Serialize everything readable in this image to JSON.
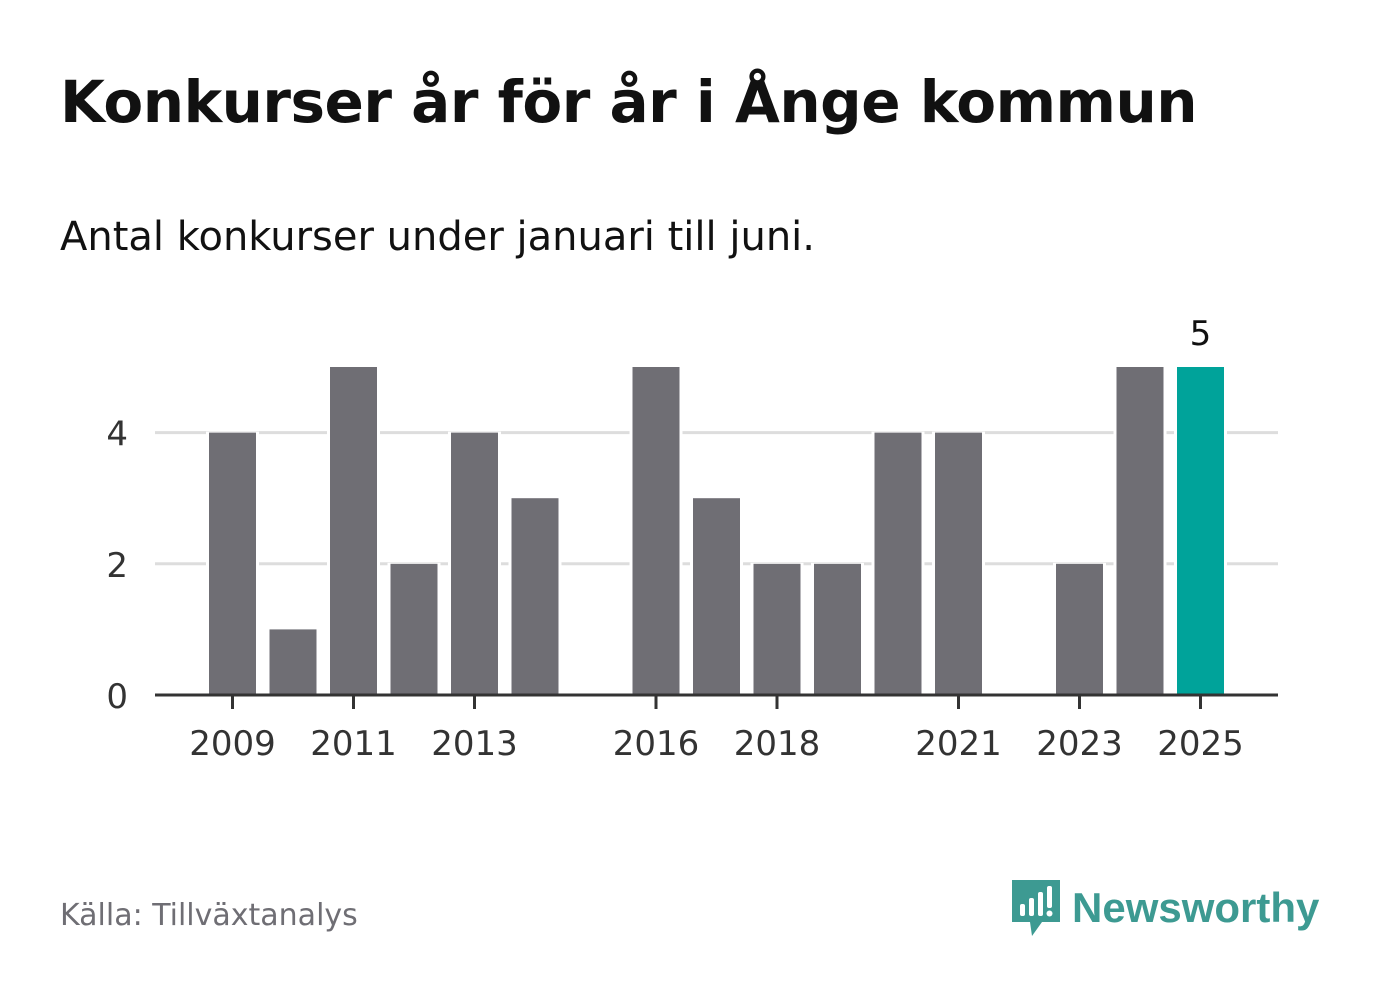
{
  "header": {
    "title": "Konkurser år för år i Ånge kommun",
    "subtitle": "Antal konkurser under januari till juni."
  },
  "footer": {
    "source": "Källa: Tillväxtanalys",
    "brand": "Newsworthy"
  },
  "colors": {
    "bar": "#6f6e74",
    "highlight": "#00a39a",
    "grid": "#dddddd",
    "axis": "#333333",
    "brand": "#3d9a92"
  },
  "chart_data": {
    "type": "bar",
    "categories": [
      "2009",
      "2010",
      "2011",
      "2012",
      "2013",
      "2014",
      "2015",
      "2016",
      "2017",
      "2018",
      "2019",
      "2020",
      "2021",
      "2022",
      "2023",
      "2024",
      "2025"
    ],
    "values": [
      4,
      1,
      5,
      2,
      4,
      3,
      0,
      5,
      3,
      2,
      2,
      4,
      4,
      0,
      2,
      5,
      5
    ],
    "x_tick_labels": [
      "2009",
      "2011",
      "2013",
      "2016",
      "2018",
      "2021",
      "2023",
      "2025"
    ],
    "y_ticks": [
      0,
      2,
      4
    ],
    "ylim": [
      0,
      5
    ],
    "highlight_index": 16,
    "highlight_label": "5",
    "grid": true
  }
}
